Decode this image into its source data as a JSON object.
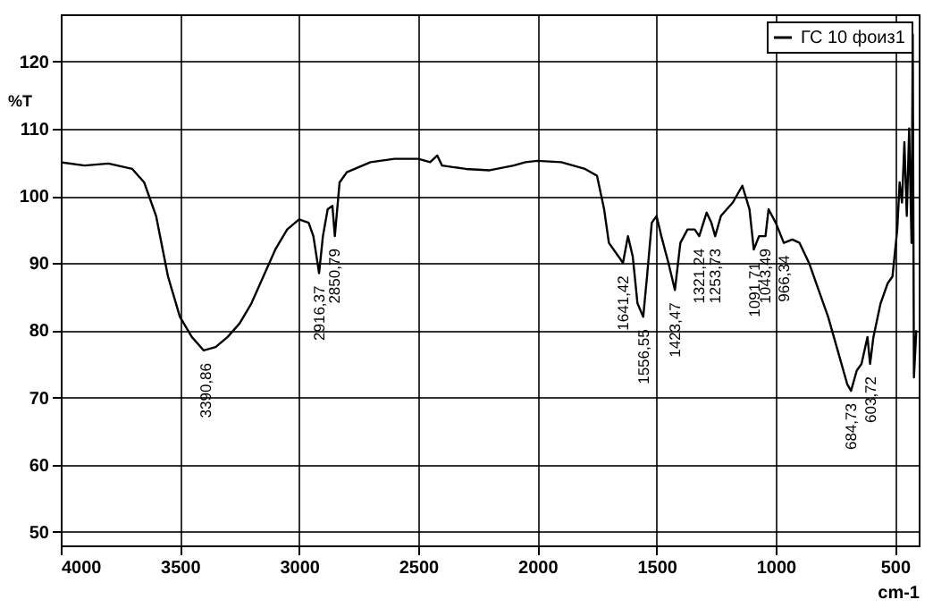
{
  "chart_data": {
    "type": "line",
    "xlabel": "cm-1",
    "ylabel": "%T",
    "xlim": [
      4000,
      400
    ],
    "ylim": [
      48,
      127
    ],
    "xticks": [
      4000,
      3500,
      3000,
      2500,
      2000,
      1500,
      1000,
      500
    ],
    "yticks": [
      50,
      60,
      70,
      80,
      90,
      100,
      110,
      120
    ],
    "grid": true,
    "legend": "top right",
    "series": [
      {
        "name": "ГС 10 фоиз1",
        "color": "#000000",
        "x": [
          4000,
          3900,
          3800,
          3700,
          3650,
          3600,
          3550,
          3500,
          3450,
          3400,
          3350,
          3300,
          3250,
          3200,
          3150,
          3100,
          3050,
          3000,
          2960,
          2940,
          2916,
          2900,
          2880,
          2860,
          2850,
          2830,
          2800,
          2700,
          2600,
          2500,
          2450,
          2420,
          2400,
          2300,
          2200,
          2100,
          2050,
          2000,
          1900,
          1800,
          1750,
          1720,
          1700,
          1660,
          1641,
          1620,
          1600,
          1580,
          1556,
          1540,
          1520,
          1500,
          1480,
          1450,
          1423,
          1400,
          1370,
          1340,
          1321,
          1290,
          1270,
          1254,
          1230,
          1180,
          1140,
          1110,
          1092,
          1070,
          1043,
          1030,
          1000,
          966,
          930,
          900,
          860,
          820,
          780,
          740,
          700,
          684,
          660,
          640,
          615,
          604,
          590,
          560,
          530,
          510,
          490,
          480,
          470,
          460,
          450,
          440,
          430,
          425,
          420,
          410
        ],
        "values": [
          105,
          104.5,
          104.8,
          104,
          102,
          97,
          88,
          82,
          79,
          77,
          77.5,
          79,
          81,
          84,
          88,
          92,
          95,
          96.5,
          96,
          94,
          88.5,
          94,
          98,
          98.5,
          94,
          102,
          103.5,
          105,
          105.5,
          105.5,
          105,
          106,
          104.5,
          104,
          103.8,
          104.5,
          105,
          105.2,
          105,
          104,
          103,
          98,
          93,
          91,
          90,
          94,
          91,
          84,
          82,
          88,
          96,
          97,
          94,
          90,
          86,
          93,
          95,
          95,
          94,
          97.5,
          96,
          94,
          97,
          99,
          101.5,
          98,
          92,
          94,
          94,
          98,
          96,
          93,
          93.5,
          93,
          90,
          86,
          82,
          77,
          72,
          71,
          74,
          75,
          79,
          75,
          79,
          84,
          87,
          88,
          95,
          102,
          99,
          108,
          97,
          110,
          93,
          124,
          73,
          80
        ]
      }
    ],
    "annotations": [
      {
        "text": "3390,86",
        "x": 3390.86,
        "y": 77
      },
      {
        "text": "2916,37",
        "x": 2916.37,
        "y": 88.5
      },
      {
        "text": "2850,79",
        "x": 2850.79,
        "y": 94
      },
      {
        "text": "1641,42",
        "x": 1641.42,
        "y": 90
      },
      {
        "text": "1556,55",
        "x": 1556.55,
        "y": 82
      },
      {
        "text": "1423,47",
        "x": 1423.47,
        "y": 86
      },
      {
        "text": "1321,24",
        "x": 1321.24,
        "y": 94
      },
      {
        "text": "1253,73",
        "x": 1253.73,
        "y": 94
      },
      {
        "text": "1091,71",
        "x": 1091.71,
        "y": 92
      },
      {
        "text": "1043,49",
        "x": 1043.49,
        "y": 94
      },
      {
        "text": "966,34",
        "x": 966.34,
        "y": 93
      },
      {
        "text": "684,73",
        "x": 684.73,
        "y": 71
      },
      {
        "text": "603,72",
        "x": 603.72,
        "y": 75
      }
    ]
  }
}
